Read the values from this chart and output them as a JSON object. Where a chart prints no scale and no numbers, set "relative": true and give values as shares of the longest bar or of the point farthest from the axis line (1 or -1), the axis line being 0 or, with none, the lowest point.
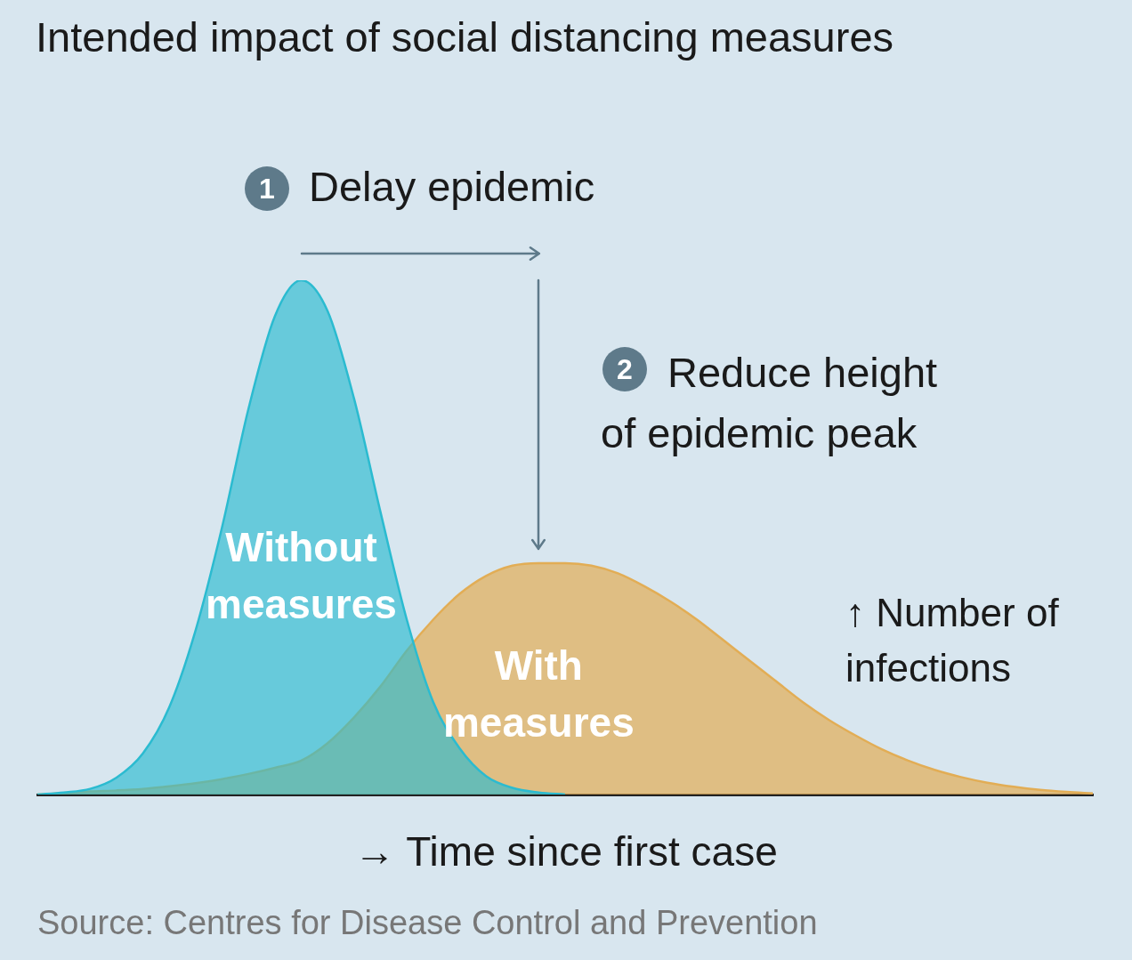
{
  "chart_data": {
    "type": "area",
    "title": "Intended impact of social distancing measures",
    "xlabel": "→ Time since first case",
    "ylabel": "↑ Number of infections",
    "relative": true,
    "grid": false,
    "legend": false,
    "categories": [
      null,
      null,
      null,
      null,
      null,
      null,
      null,
      null,
      null,
      null,
      null,
      null,
      null,
      null,
      null,
      null,
      null,
      null,
      null,
      null,
      null,
      null,
      null,
      null,
      null,
      null,
      null,
      null,
      null,
      null,
      null,
      null,
      null,
      null,
      null,
      null,
      null,
      null,
      null,
      null,
      null
    ],
    "series": [
      {
        "name": "Without measures",
        "color": "#2bbbd0",
        "values": [
          0,
          0.004,
          0.011,
          0.033,
          0.08,
          0.17,
          0.32,
          0.52,
          0.75,
          0.93,
          1,
          0.94,
          0.77,
          0.55,
          0.34,
          0.18,
          0.09,
          0.036,
          0.013,
          0.004,
          0,
          null,
          null,
          null,
          null,
          null,
          null,
          null,
          null,
          null,
          null,
          null,
          null,
          null,
          null,
          null,
          null,
          null,
          null,
          null,
          null
        ]
      },
      {
        "name": "With measures",
        "color": "#e2ad55",
        "values": [
          0,
          0.003,
          0.006,
          0.008,
          0.011,
          0.016,
          0.022,
          0.03,
          0.04,
          0.052,
          0.066,
          0.1,
          0.15,
          0.21,
          0.28,
          0.34,
          0.39,
          0.425,
          0.445,
          0.45,
          0.45,
          0.445,
          0.43,
          0.405,
          0.375,
          0.34,
          0.3,
          0.26,
          0.22,
          0.18,
          0.145,
          0.115,
          0.088,
          0.066,
          0.048,
          0.034,
          0.023,
          0.015,
          0.009,
          0.005,
          0.002
        ]
      }
    ],
    "annotations": [
      "1",
      "Delay epidemic",
      "2",
      "Reduce height of epidemic peak",
      "Source: Centres for Disease Control and Prevention"
    ]
  }
}
